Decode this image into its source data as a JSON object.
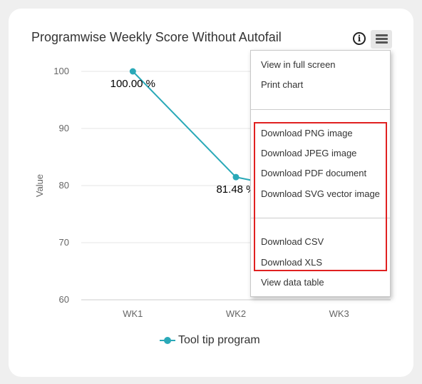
{
  "chart": {
    "title": "Programwise Weekly Score Without Autofail",
    "info_icon": "info-circle-icon",
    "menu_icon": "hamburger-menu-icon",
    "series_color": "#2aa9b8",
    "highlight_color": "#e02020"
  },
  "chart_data": {
    "type": "line",
    "title": "Programwise Weekly Score Without Autofail",
    "xlabel": "",
    "ylabel": "Value",
    "categories": [
      "WK1",
      "WK2",
      "WK3"
    ],
    "series": [
      {
        "name": "Tool tip program",
        "values": [
          100.0,
          81.48,
          77.8
        ],
        "data_labels": [
          "100.00 %",
          "81.48 %",
          ""
        ]
      }
    ],
    "ylim": [
      60,
      100
    ],
    "yticks": [
      60,
      70,
      80,
      90,
      100
    ],
    "grid": true,
    "legend": "bottom-center"
  },
  "export_menu": {
    "items": [
      "View in full screen",
      "Print chart",
      "Download PNG image",
      "Download JPEG image",
      "Download PDF document",
      "Download SVG vector image",
      "Download CSV",
      "Download XLS",
      "View data table"
    ]
  }
}
